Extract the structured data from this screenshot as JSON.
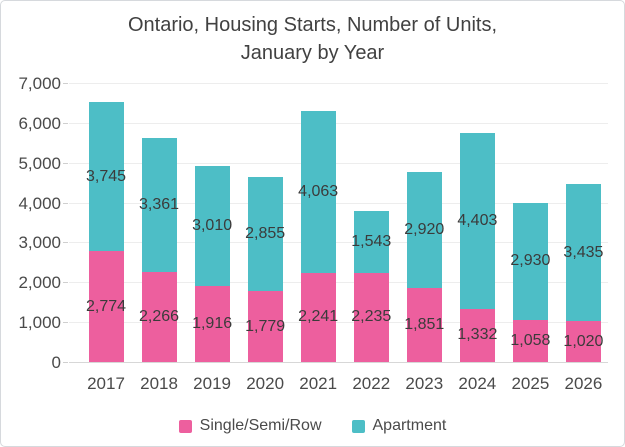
{
  "chart_data": {
    "type": "bar",
    "stacked": true,
    "title": "Ontario, Housing Starts, Number of Units, January by Year",
    "title_lines": [
      "Ontario, Housing Starts, Number of Units,",
      "January by Year"
    ],
    "categories": [
      "2017",
      "2018",
      "2019",
      "2020",
      "2021",
      "2022",
      "2023",
      "2024",
      "2025",
      "2026"
    ],
    "series": [
      {
        "name": "Single/Semi/Row",
        "color": "#ED5F9E",
        "values": [
          2774,
          2266,
          1916,
          1779,
          2241,
          2235,
          1851,
          1332,
          1058,
          1020
        ]
      },
      {
        "name": "Apartment",
        "color": "#4DBEC6",
        "values": [
          3745,
          3361,
          3010,
          2855,
          4063,
          1543,
          2920,
          4403,
          2930,
          3435
        ]
      }
    ],
    "ylim": [
      0,
      7000
    ],
    "ytick_interval": 1000,
    "ytick_labels": [
      "0",
      "1,000",
      "2,000",
      "3,000",
      "4,000",
      "5,000",
      "6,000",
      "7,000"
    ],
    "grid": true,
    "data_labels": true,
    "legend_position": "bottom"
  }
}
